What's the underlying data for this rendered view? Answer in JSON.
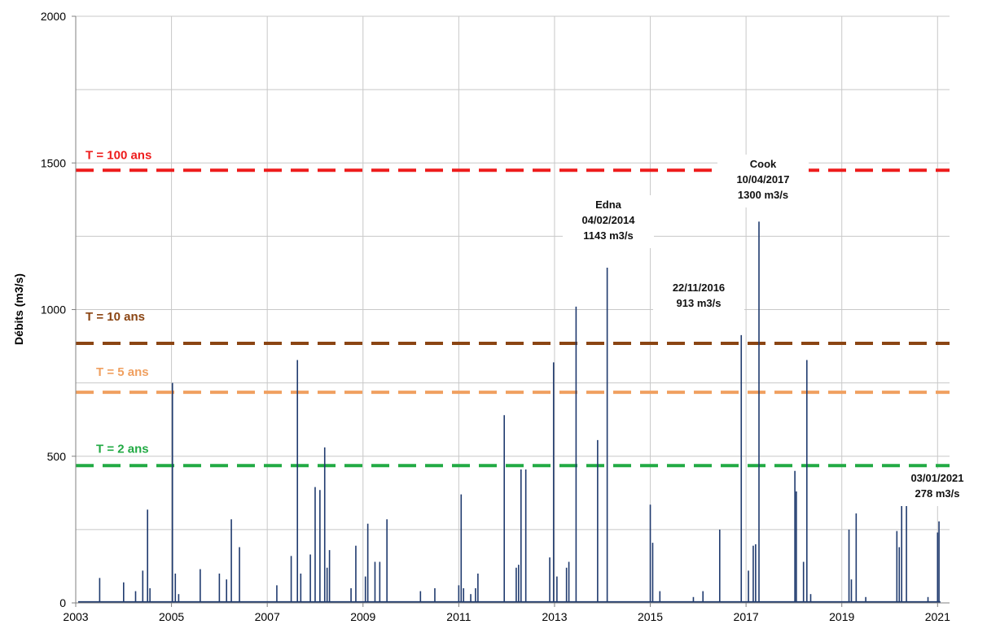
{
  "chart_data": {
    "type": "line",
    "ylabel": "Débits (m3/s)",
    "xlabel": "",
    "xlim": [
      2003,
      2021.25
    ],
    "ylim": [
      0,
      2000
    ],
    "x_ticks": [
      "2003",
      "2005",
      "2007",
      "2009",
      "2011",
      "2013",
      "2015",
      "2017",
      "2019",
      "2021"
    ],
    "y_ticks": [
      "0",
      "500",
      "1000",
      "1500",
      "2000"
    ],
    "grid": "on",
    "series_color": "#1f3a6e",
    "return_periods": [
      {
        "label": "T = 100 ans",
        "value": 1475,
        "color": "#ee1c1c"
      },
      {
        "label": "T = 10 ans",
        "value": 885,
        "color": "#8b4513"
      },
      {
        "label": "T = 5 ans",
        "value": 718,
        "color": "#f0a060"
      },
      {
        "label": "T = 2 ans",
        "value": 468,
        "color": "#22aa44"
      }
    ],
    "annotations": [
      {
        "lines": [
          "Edna",
          "04/02/2014",
          "1143 m3/s"
        ],
        "color": "#111111"
      },
      {
        "lines": [
          "Cook",
          "10/04/2017",
          "1300 m3/s"
        ],
        "color": "#111111"
      },
      {
        "lines": [
          "22/11/2016",
          "913 m3/s"
        ],
        "color": "#111111"
      },
      {
        "lines": [
          "03/01/2021",
          "278 m3/s"
        ],
        "color": "#ee1111"
      }
    ],
    "peaks": [
      [
        2003.5,
        85
      ],
      [
        2004.0,
        70
      ],
      [
        2004.25,
        40
      ],
      [
        2004.4,
        110
      ],
      [
        2004.5,
        318
      ],
      [
        2004.55,
        50
      ],
      [
        2005.02,
        750
      ],
      [
        2005.08,
        100
      ],
      [
        2005.15,
        30
      ],
      [
        2005.6,
        115
      ],
      [
        2006.0,
        100
      ],
      [
        2006.15,
        80
      ],
      [
        2006.25,
        285
      ],
      [
        2006.42,
        190
      ],
      [
        2007.2,
        60
      ],
      [
        2007.5,
        160
      ],
      [
        2007.63,
        828
      ],
      [
        2007.7,
        100
      ],
      [
        2007.9,
        165
      ],
      [
        2008.0,
        395
      ],
      [
        2008.1,
        385
      ],
      [
        2008.2,
        530
      ],
      [
        2008.25,
        120
      ],
      [
        2008.3,
        180
      ],
      [
        2008.75,
        50
      ],
      [
        2008.85,
        195
      ],
      [
        2009.05,
        90
      ],
      [
        2009.1,
        270
      ],
      [
        2009.25,
        140
      ],
      [
        2009.35,
        140
      ],
      [
        2009.5,
        285
      ],
      [
        2010.2,
        40
      ],
      [
        2010.5,
        50
      ],
      [
        2011.0,
        60
      ],
      [
        2011.05,
        370
      ],
      [
        2011.1,
        50
      ],
      [
        2011.25,
        30
      ],
      [
        2011.35,
        50
      ],
      [
        2011.4,
        100
      ],
      [
        2011.95,
        640
      ],
      [
        2012.2,
        120
      ],
      [
        2012.25,
        130
      ],
      [
        2012.3,
        455
      ],
      [
        2012.4,
        455
      ],
      [
        2012.9,
        155
      ],
      [
        2012.98,
        820
      ],
      [
        2013.05,
        90
      ],
      [
        2013.25,
        120
      ],
      [
        2013.3,
        140
      ],
      [
        2013.45,
        1010
      ],
      [
        2013.9,
        555
      ],
      [
        2014.1,
        1143
      ],
      [
        2015.0,
        335
      ],
      [
        2015.05,
        205
      ],
      [
        2015.2,
        40
      ],
      [
        2015.9,
        20
      ],
      [
        2016.1,
        40
      ],
      [
        2016.45,
        250
      ],
      [
        2016.9,
        913
      ],
      [
        2017.05,
        110
      ],
      [
        2017.15,
        195
      ],
      [
        2017.2,
        200
      ],
      [
        2017.27,
        1300
      ],
      [
        2018.02,
        450
      ],
      [
        2018.05,
        380
      ],
      [
        2018.2,
        140
      ],
      [
        2018.27,
        828
      ],
      [
        2018.35,
        30
      ],
      [
        2019.15,
        250
      ],
      [
        2019.2,
        80
      ],
      [
        2019.3,
        305
      ],
      [
        2019.5,
        20
      ],
      [
        2020.15,
        245
      ],
      [
        2020.2,
        190
      ],
      [
        2020.25,
        415
      ],
      [
        2020.35,
        410
      ],
      [
        2020.8,
        20
      ],
      [
        2021.0,
        240
      ],
      [
        2021.03,
        278
      ]
    ]
  }
}
